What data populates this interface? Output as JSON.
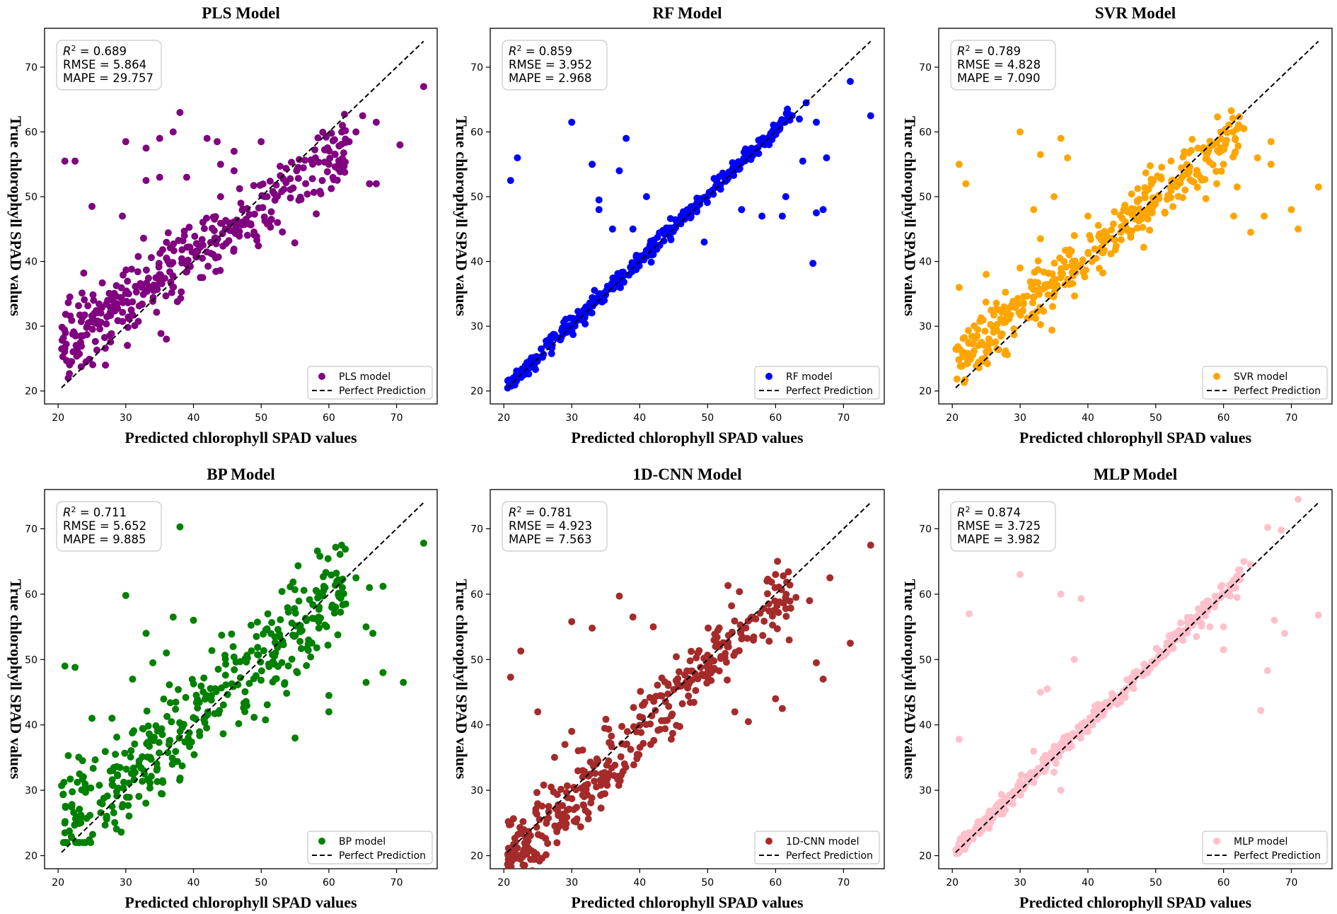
{
  "chart_data": [
    {
      "type": "scatter",
      "title": "PLS Model",
      "xlabel": "Predicted chlorophyll SPAD values",
      "ylabel": "True chlorophyll SPAD values",
      "xlim": [
        18,
        76
      ],
      "ylim": [
        18,
        76
      ],
      "xticks": [
        20,
        30,
        40,
        50,
        60,
        70
      ],
      "yticks": [
        20,
        30,
        40,
        50,
        60,
        70
      ],
      "color": "#800080",
      "series_name": "PLS model",
      "reference_line": {
        "name": "Perfect Prediction",
        "from": [
          20.5,
          20.5
        ],
        "to": [
          74,
          74
        ]
      },
      "metrics": {
        "r2_label": "R",
        "r2_sup": "2",
        "r2_value": " = 0.689",
        "rmse": "RMSE = 5.864",
        "mape": "MAPE = 29.757"
      },
      "bias": "flat",
      "points": [
        [
          21,
          55.5
        ],
        [
          22.5,
          55.5
        ],
        [
          25,
          48.5
        ],
        [
          29.5,
          47
        ],
        [
          30,
          58.5
        ],
        [
          33,
          57.5
        ],
        [
          35,
          59
        ],
        [
          37,
          60
        ],
        [
          38,
          63
        ],
        [
          42,
          59
        ],
        [
          43.5,
          58.5
        ],
        [
          46,
          57
        ],
        [
          50,
          58.5
        ],
        [
          33,
          52.5
        ],
        [
          35,
          53
        ],
        [
          39,
          53
        ],
        [
          44,
          55
        ],
        [
          46,
          54
        ],
        [
          28,
          34
        ],
        [
          27,
          24
        ],
        [
          21.5,
          22
        ],
        [
          36,
          28
        ],
        [
          44,
          50
        ],
        [
          47,
          49
        ],
        [
          62,
          61
        ],
        [
          65,
          62.5
        ],
        [
          66,
          52
        ],
        [
          67,
          52
        ],
        [
          70.5,
          58
        ],
        [
          74,
          67
        ],
        [
          64,
          60
        ],
        [
          67,
          61.5
        ],
        [
          63,
          58.5
        ],
        [
          60,
          55
        ],
        [
          58,
          56
        ]
      ]
    },
    {
      "type": "scatter",
      "title": "RF Model",
      "xlabel": "Predicted chlorophyll SPAD values",
      "ylabel": "True chlorophyll SPAD values",
      "xlim": [
        18,
        76
      ],
      "ylim": [
        18,
        76
      ],
      "xticks": [
        20,
        30,
        40,
        50,
        60,
        70
      ],
      "yticks": [
        20,
        30,
        40,
        50,
        60,
        70
      ],
      "color": "#0000ff",
      "series_name": "RF model",
      "reference_line": {
        "name": "Perfect Prediction",
        "from": [
          20.5,
          20.5
        ],
        "to": [
          74,
          74
        ]
      },
      "metrics": {
        "r2_label": "R",
        "r2_sup": "2",
        "r2_value": " = 0.859",
        "rmse": "RMSE = 3.952",
        "mape": "MAPE = 2.968"
      },
      "bias": "tight",
      "points": [
        [
          21,
          52.5
        ],
        [
          22,
          56
        ],
        [
          30,
          61.5
        ],
        [
          33,
          55
        ],
        [
          37,
          54
        ],
        [
          38,
          59
        ],
        [
          34,
          49.5
        ],
        [
          34,
          48
        ],
        [
          36,
          45
        ],
        [
          39,
          45
        ],
        [
          41,
          50
        ],
        [
          49.5,
          43
        ],
        [
          58,
          47
        ],
        [
          61,
          47
        ],
        [
          61.5,
          50
        ],
        [
          64,
          55.5
        ],
        [
          65.5,
          39.7
        ],
        [
          66,
          47.5
        ],
        [
          67,
          48
        ],
        [
          67.5,
          56
        ],
        [
          71,
          67.8
        ],
        [
          74,
          62.5
        ],
        [
          66,
          61.5
        ],
        [
          63.5,
          62
        ],
        [
          64.5,
          64.5
        ],
        [
          55,
          48
        ]
      ]
    },
    {
      "type": "scatter",
      "title": "SVR Model",
      "xlabel": "Predicted chlorophyll SPAD values",
      "ylabel": "True chlorophyll SPAD values",
      "xlim": [
        18,
        76
      ],
      "ylim": [
        18,
        76
      ],
      "xticks": [
        20,
        30,
        40,
        50,
        60,
        70
      ],
      "yticks": [
        20,
        30,
        40,
        50,
        60,
        70
      ],
      "color": "#ffa500",
      "series_name": "SVR model",
      "reference_line": {
        "name": "Perfect Prediction",
        "from": [
          20.5,
          20.5
        ],
        "to": [
          74,
          74
        ]
      },
      "metrics": {
        "r2_label": "R",
        "r2_sup": "2",
        "r2_value": " = 0.789",
        "rmse": "RMSE = 4.828",
        "mape": "MAPE = 7.090"
      },
      "bias": "mild",
      "points": [
        [
          21,
          55
        ],
        [
          22,
          52
        ],
        [
          21,
          36
        ],
        [
          25,
          38
        ],
        [
          30,
          60
        ],
        [
          33,
          56.5
        ],
        [
          36,
          59
        ],
        [
          37,
          56
        ],
        [
          32,
          48
        ],
        [
          33,
          43.5
        ],
        [
          30,
          39
        ],
        [
          38,
          44
        ],
        [
          35,
          50
        ],
        [
          40,
          47
        ],
        [
          64,
          44.5
        ],
        [
          66,
          47
        ],
        [
          67,
          55
        ],
        [
          70,
          48
        ],
        [
          71,
          45
        ],
        [
          74,
          51.5
        ],
        [
          62,
          51.5
        ],
        [
          61.5,
          47
        ],
        [
          67,
          58.5
        ],
        [
          65,
          56
        ],
        [
          63,
          60.5
        ],
        [
          60,
          55
        ],
        [
          59,
          52
        ]
      ]
    },
    {
      "type": "scatter",
      "title": "BP Model",
      "xlabel": "Predicted chlorophyll SPAD values",
      "ylabel": "True chlorophyll SPAD values",
      "xlim": [
        18,
        76
      ],
      "ylim": [
        18,
        76
      ],
      "xticks": [
        20,
        30,
        40,
        50,
        60,
        70
      ],
      "yticks": [
        20,
        30,
        40,
        50,
        60,
        70
      ],
      "color": "#008000",
      "series_name": "BP model",
      "reference_line": {
        "name": "Perfect Prediction",
        "from": [
          20.5,
          20.5
        ],
        "to": [
          74,
          74
        ]
      },
      "metrics": {
        "r2_label": "R",
        "r2_sup": "2",
        "r2_value": " = 0.711",
        "rmse": "RMSE = 5.652",
        "mape": "MAPE = 9.885"
      },
      "bias": "wide",
      "points": [
        [
          21,
          49
        ],
        [
          22.5,
          48.8
        ],
        [
          21.5,
          35.3
        ],
        [
          25,
          41
        ],
        [
          30,
          59.8
        ],
        [
          33,
          54
        ],
        [
          37,
          56.5
        ],
        [
          38,
          70.3
        ],
        [
          40,
          56
        ],
        [
          36,
          51
        ],
        [
          34,
          49.5
        ],
        [
          31,
          47
        ],
        [
          74,
          67.8
        ],
        [
          64,
          62.5
        ],
        [
          62,
          61
        ],
        [
          66,
          61
        ],
        [
          68,
          61.2
        ],
        [
          65.5,
          55
        ],
        [
          66.5,
          54
        ],
        [
          65.5,
          46.5
        ],
        [
          68,
          48
        ],
        [
          71,
          46.5
        ],
        [
          60,
          44.5
        ],
        [
          60,
          42
        ],
        [
          55,
          38
        ],
        [
          57,
          53
        ],
        [
          61,
          58
        ],
        [
          62.5,
          58.5
        ],
        [
          23,
          22
        ],
        [
          21,
          23.5
        ]
      ]
    },
    {
      "type": "scatter",
      "title": "1D-CNN Model",
      "xlabel": "Predicted chlorophyll SPAD values",
      "ylabel": "True chlorophyll SPAD values",
      "xlim": [
        18,
        76
      ],
      "ylim": [
        18,
        76
      ],
      "xticks": [
        20,
        30,
        40,
        50,
        60,
        70
      ],
      "yticks": [
        20,
        30,
        40,
        50,
        60,
        70
      ],
      "color": "#a52a2a",
      "series_name": "1D-CNN model",
      "reference_line": {
        "name": "Perfect Prediction",
        "from": [
          20.5,
          20.5
        ],
        "to": [
          74,
          74
        ]
      },
      "metrics": {
        "r2_label": "R",
        "r2_sup": "2",
        "r2_value": " = 0.781",
        "rmse": "RMSE = 4.923",
        "mape": "MAPE = 7.563"
      },
      "bias": "under",
      "points": [
        [
          21,
          47.3
        ],
        [
          22.5,
          51.3
        ],
        [
          25,
          42
        ],
        [
          30,
          55.8
        ],
        [
          33,
          54.8
        ],
        [
          37,
          59.7
        ],
        [
          39,
          56.5
        ],
        [
          42,
          55
        ],
        [
          53,
          61.3
        ],
        [
          60,
          63
        ],
        [
          65,
          59
        ],
        [
          68,
          62.5
        ],
        [
          74,
          67.5
        ],
        [
          71,
          52.5
        ],
        [
          66,
          49.5
        ],
        [
          67,
          47
        ],
        [
          60,
          44
        ],
        [
          61,
          42.5
        ],
        [
          56,
          40.5
        ],
        [
          54,
          42
        ],
        [
          62,
          53
        ],
        [
          63,
          59.5
        ],
        [
          59,
          58.5
        ],
        [
          30,
          39
        ],
        [
          29,
          37
        ]
      ]
    },
    {
      "type": "scatter",
      "title": "MLP Model",
      "xlabel": "Predicted chlorophyll SPAD values",
      "ylabel": "True chlorophyll SPAD values",
      "xlim": [
        18,
        76
      ],
      "ylim": [
        18,
        76
      ],
      "xticks": [
        20,
        30,
        40,
        50,
        60,
        70
      ],
      "yticks": [
        20,
        30,
        40,
        50,
        60,
        70
      ],
      "color": "#ffc0cb",
      "series_name": "MLP model",
      "reference_line": {
        "name": "Perfect Prediction",
        "from": [
          20.5,
          20.5
        ],
        "to": [
          74,
          74
        ]
      },
      "metrics": {
        "r2_label": "R",
        "r2_sup": "2",
        "r2_value": " = 0.874",
        "rmse": "RMSE = 3.725",
        "mape": "MAPE = 3.982"
      },
      "bias": "tight",
      "points": [
        [
          21,
          37.8
        ],
        [
          22.5,
          57
        ],
        [
          30,
          63
        ],
        [
          36,
          60
        ],
        [
          39,
          59.3
        ],
        [
          33,
          45
        ],
        [
          34,
          45.5
        ],
        [
          38,
          50
        ],
        [
          32,
          36
        ],
        [
          36,
          30
        ],
        [
          60,
          55
        ],
        [
          65.5,
          42.2
        ],
        [
          66.5,
          48.3
        ],
        [
          67.5,
          56
        ],
        [
          69,
          54
        ],
        [
          74,
          56.8
        ],
        [
          71,
          74.5
        ],
        [
          68.5,
          69.8
        ],
        [
          66.5,
          70.2
        ],
        [
          64,
          64.5
        ],
        [
          63,
          65
        ],
        [
          62,
          59.5
        ],
        [
          60,
          51.5
        ],
        [
          58,
          55
        ],
        [
          56,
          53.5
        ]
      ]
    }
  ]
}
